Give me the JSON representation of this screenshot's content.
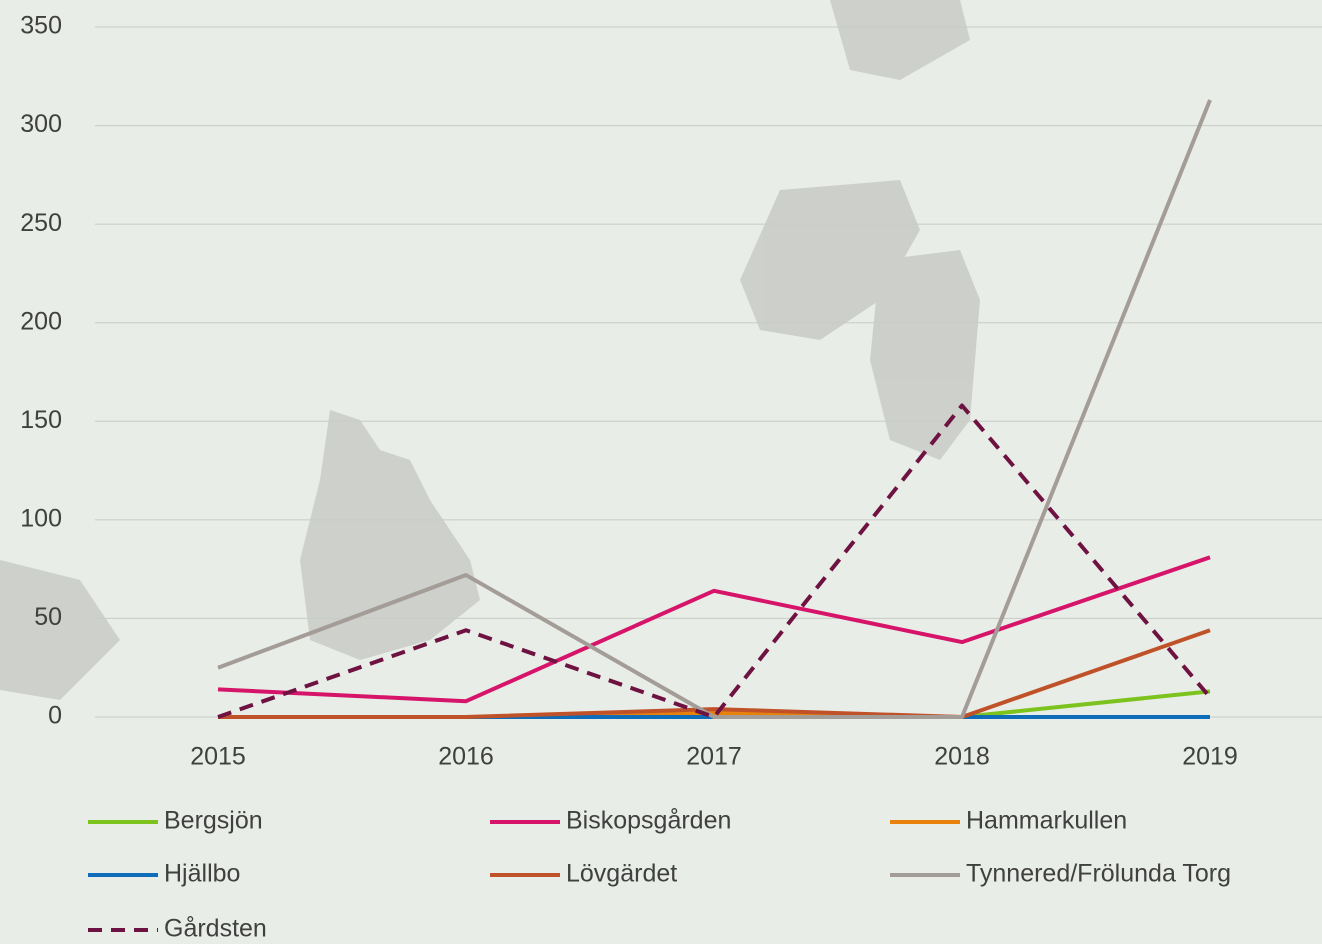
{
  "chart_data": {
    "type": "line",
    "categories": [
      "2015",
      "2016",
      "2017",
      "2018",
      "2019"
    ],
    "series": [
      {
        "name": "Bergsjön",
        "color": "#7dc31e",
        "values": [
          0,
          0,
          0,
          0,
          13
        ]
      },
      {
        "name": "Biskopsgården",
        "color": "#d6156a",
        "values": [
          14,
          8,
          64,
          38,
          81
        ]
      },
      {
        "name": "Hammarkullen",
        "color": "#e8820c",
        "values": [
          0,
          0,
          2,
          0,
          0
        ]
      },
      {
        "name": "Hjällbo",
        "color": "#0f6cb8",
        "values": [
          0,
          0,
          0,
          0,
          0
        ]
      },
      {
        "name": "Lövgärdet",
        "color": "#c0522a",
        "values": [
          0,
          0,
          4,
          0,
          44
        ]
      },
      {
        "name": "Tynnered/Frölunda Torg",
        "color": "#a39c97",
        "values": [
          25,
          72,
          0,
          0,
          313
        ]
      },
      {
        "name": "Gårdsten",
        "color": "#6e1242",
        "values": [
          0,
          44,
          0,
          158,
          10
        ],
        "style": "dashed"
      }
    ],
    "ylim": [
      0,
      350
    ],
    "yticks": [
      0,
      50,
      100,
      150,
      200,
      250,
      300,
      350
    ],
    "grid": true,
    "legend": "bottom"
  }
}
